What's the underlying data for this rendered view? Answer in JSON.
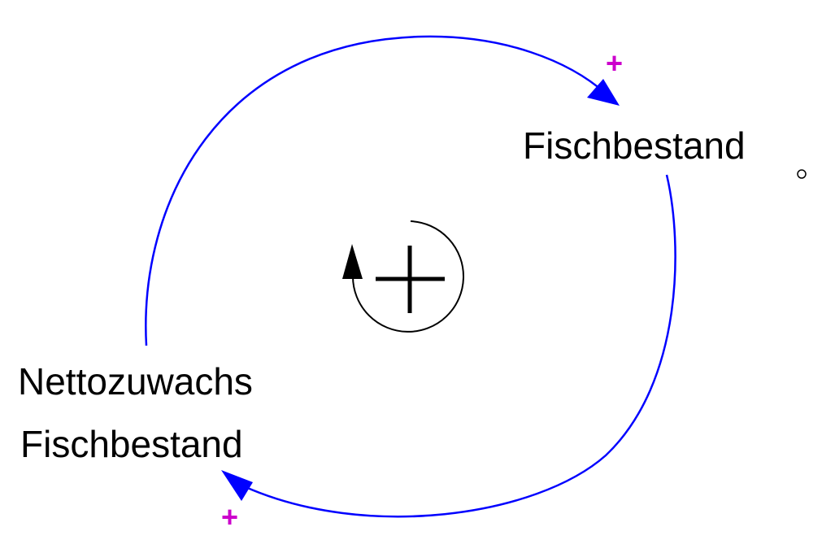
{
  "colors": {
    "link": "#0000ff",
    "polarity": "#cc00cc",
    "text": "#000000",
    "loop_marker": "#000000"
  },
  "variables": [
    {
      "id": "fischbestand",
      "lines": [
        "Fischbestand"
      ]
    },
    {
      "id": "nettozuwachs",
      "lines": [
        "Nettozuwachs",
        "Fischbestand"
      ]
    }
  ],
  "links": [
    {
      "from": "nettozuwachs",
      "to": "fischbestand",
      "polarity": "+"
    },
    {
      "from": "fischbestand",
      "to": "nettozuwachs",
      "polarity": "+"
    }
  ],
  "loop": {
    "polarity": "+",
    "direction": "counterclockwise",
    "icon": "loop-arrow-icon"
  }
}
